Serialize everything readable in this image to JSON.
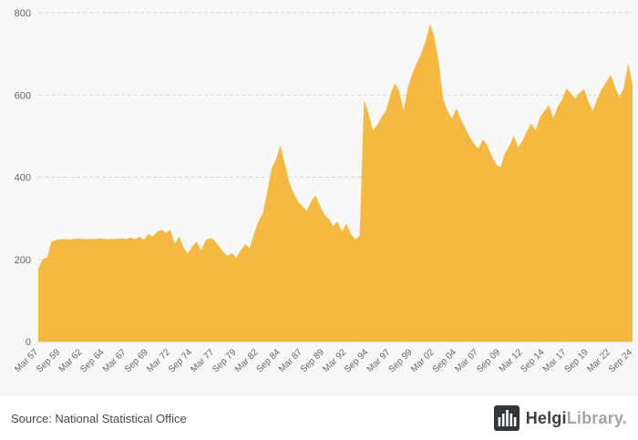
{
  "chart_data": {
    "type": "area",
    "title": "",
    "xlabel": "",
    "ylabel": "",
    "ylim": [
      0,
      800
    ],
    "yticks": [
      0,
      200,
      400,
      600,
      800
    ],
    "x_tick_every": 5,
    "grid": "dashed-horizontal",
    "legend": "none",
    "area_color": "#F5B942",
    "axis_label_color": "#666666",
    "gridline_color": "#d6d6d6",
    "categories": [
      "Mar 57",
      "Sep 57",
      "Mar 58",
      "Sep 58",
      "Mar 59",
      "Sep 59",
      "Mar 60",
      "Sep 60",
      "Mar 61",
      "Sep 61",
      "Mar 62",
      "Sep 62",
      "Mar 63",
      "Sep 63",
      "Mar 64",
      "Sep 64",
      "Mar 65",
      "Sep 65",
      "Mar 66",
      "Sep 66",
      "Mar 67",
      "Sep 67",
      "Mar 68",
      "Sep 68",
      "Mar 69",
      "Sep 69",
      "Mar 70",
      "Sep 70",
      "Mar 71",
      "Sep 71",
      "Mar 72",
      "Sep 72",
      "Mar 73",
      "Sep 73",
      "Mar 74",
      "Sep 74",
      "Mar 75",
      "Sep 75",
      "Mar 76",
      "Sep 76",
      "Mar 77",
      "Sep 77",
      "Mar 78",
      "Sep 78",
      "Mar 79",
      "Sep 79",
      "Mar 80",
      "Sep 80",
      "Mar 81",
      "Sep 81",
      "Mar 82",
      "Sep 82",
      "Mar 83",
      "Sep 83",
      "Mar 84",
      "Sep 84",
      "Mar 85",
      "Sep 85",
      "Mar 86",
      "Sep 86",
      "Mar 87",
      "Sep 87",
      "Mar 88",
      "Sep 88",
      "Mar 89",
      "Sep 89",
      "Mar 90",
      "Sep 90",
      "Mar 91",
      "Sep 91",
      "Mar 92",
      "Sep 92",
      "Mar 93",
      "Sep 93",
      "Mar 94",
      "Sep 94",
      "Mar 95",
      "Sep 95",
      "Mar 96",
      "Sep 96",
      "Mar 97",
      "Sep 97",
      "Mar 98",
      "Sep 98",
      "Mar 99",
      "Sep 99",
      "Mar 00",
      "Sep 00",
      "Mar 01",
      "Sep 01",
      "Mar 02",
      "Sep 02",
      "Mar 03",
      "Sep 03",
      "Mar 04",
      "Sep 04",
      "Mar 05",
      "Sep 05",
      "Mar 06",
      "Sep 06",
      "Mar 07",
      "Sep 07",
      "Mar 08",
      "Sep 08",
      "Mar 09",
      "Sep 09",
      "Mar 10",
      "Sep 10",
      "Mar 11",
      "Sep 11",
      "Mar 12",
      "Sep 12",
      "Mar 13",
      "Sep 13",
      "Mar 14",
      "Sep 14",
      "Mar 15",
      "Sep 15",
      "Mar 16",
      "Sep 16",
      "Mar 17",
      "Sep 17",
      "Mar 18",
      "Sep 18",
      "Mar 19",
      "Sep 19",
      "Mar 20",
      "Sep 20",
      "Mar 21",
      "Sep 21",
      "Mar 22",
      "Sep 22",
      "Mar 23",
      "Sep 23",
      "Mar 24",
      "Sep 24"
    ],
    "values": [
      178,
      200,
      205,
      243,
      247,
      249,
      250,
      248,
      250,
      251,
      250,
      249,
      250,
      250,
      251,
      250,
      249,
      250,
      250,
      251,
      250,
      253,
      249,
      256,
      248,
      262,
      255,
      268,
      272,
      265,
      272,
      238,
      256,
      228,
      214,
      232,
      243,
      222,
      246,
      252,
      247,
      233,
      218,
      208,
      216,
      204,
      222,
      237,
      228,
      262,
      292,
      312,
      363,
      421,
      443,
      478,
      432,
      388,
      362,
      341,
      329,
      318,
      342,
      356,
      330,
      309,
      299,
      281,
      292,
      268,
      287,
      262,
      249,
      257,
      588,
      557,
      514,
      527,
      546,
      562,
      601,
      629,
      609,
      562,
      621,
      652,
      678,
      701,
      731,
      773,
      741,
      678,
      589,
      561,
      543,
      568,
      541,
      519,
      498,
      481,
      469,
      492,
      478,
      452,
      431,
      424,
      458,
      476,
      501,
      472,
      489,
      512,
      531,
      514,
      547,
      561,
      576,
      544,
      571,
      589,
      616,
      604,
      591,
      606,
      614,
      583,
      561,
      591,
      614,
      631,
      649,
      621,
      594,
      616,
      678,
      624
    ]
  },
  "footer": {
    "source": "Source: National Statistical Office",
    "brand": {
      "primary": "Helgi",
      "secondary": "Library."
    }
  }
}
